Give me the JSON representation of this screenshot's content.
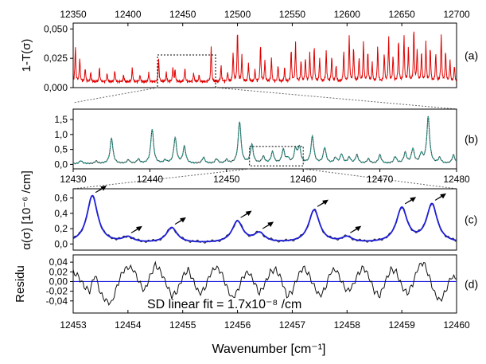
{
  "figure": {
    "xlabel": "Wavenumber [cm⁻¹]",
    "sd_note": "SD linear fit = 1.7x10⁻⁸ /cm",
    "colors": {
      "transmission": "#e00000",
      "fit": "#1e1ed8",
      "data": "#222222",
      "model_b": "#2ab0a0",
      "residual_zero": "#2020e0"
    }
  },
  "chart_data": [
    {
      "id": "a",
      "type": "line",
      "panel_label": "(a)",
      "ylabel": "1-T(σ)",
      "xlim": [
        12350,
        12700
      ],
      "ylim": [
        0,
        0.055
      ],
      "top_ticks": [
        "12350",
        "12400",
        "12450",
        "12500",
        "12550",
        "12600",
        "12650",
        "12700"
      ],
      "top_tick_values": [
        12350,
        12400,
        12450,
        12500,
        12550,
        12600,
        12650,
        12700
      ],
      "yticks": [
        "0,000",
        "0,025",
        "0,050"
      ],
      "ytick_values": [
        0,
        0.025,
        0.05
      ],
      "zoom_box_x": [
        12427,
        12480
      ],
      "series": [
        {
          "baseline": 0.003,
          "peaks": [
            [
              12352,
              0.03
            ],
            [
              12356,
              0.02
            ],
            [
              12361,
              0.012
            ],
            [
              12366,
              0.008
            ],
            [
              12374,
              0.012
            ],
            [
              12381,
              0.007
            ],
            [
              12388,
              0.01
            ],
            [
              12396,
              0.006
            ],
            [
              12404,
              0.012
            ],
            [
              12411,
              0.006
            ],
            [
              12419,
              0.008
            ],
            [
              12428,
              0.02
            ],
            [
              12435,
              0.008
            ],
            [
              12441,
              0.012
            ],
            [
              12443,
              0.01
            ],
            [
              12452,
              0.012
            ],
            [
              12460,
              0.008
            ],
            [
              12465,
              0.006
            ],
            [
              12476,
              0.03
            ],
            [
              12485,
              0.014
            ],
            [
              12491,
              0.008
            ],
            [
              12496,
              0.025
            ],
            [
              12500,
              0.045
            ],
            [
              12504,
              0.022
            ],
            [
              12510,
              0.016
            ],
            [
              12516,
              0.01
            ],
            [
              12521,
              0.032
            ],
            [
              12525,
              0.018
            ],
            [
              12531,
              0.02
            ],
            [
              12537,
              0.014
            ],
            [
              12543,
              0.012
            ],
            [
              12549,
              0.028
            ],
            [
              12553,
              0.034
            ],
            [
              12558,
              0.018
            ],
            [
              12562,
              0.02
            ],
            [
              12566,
              0.024
            ],
            [
              12570,
              0.03
            ],
            [
              12575,
              0.02
            ],
            [
              12581,
              0.026
            ],
            [
              12586,
              0.022
            ],
            [
              12590,
              0.014
            ],
            [
              12597,
              0.026
            ],
            [
              12602,
              0.04
            ],
            [
              12606,
              0.03
            ],
            [
              12611,
              0.02
            ],
            [
              12615,
              0.034
            ],
            [
              12619,
              0.026
            ],
            [
              12623,
              0.016
            ],
            [
              12628,
              0.03
            ],
            [
              12634,
              0.024
            ],
            [
              12638,
              0.038
            ],
            [
              12642,
              0.022
            ],
            [
              12647,
              0.036
            ],
            [
              12652,
              0.04
            ],
            [
              12656,
              0.03
            ],
            [
              12661,
              0.046
            ],
            [
              12664,
              0.028
            ],
            [
              12668,
              0.026
            ],
            [
              12672,
              0.034
            ],
            [
              12676,
              0.03
            ],
            [
              12681,
              0.024
            ],
            [
              12686,
              0.04
            ],
            [
              12690,
              0.026
            ],
            [
              12694,
              0.018
            ],
            [
              12698,
              0.014
            ]
          ]
        }
      ]
    },
    {
      "id": "b",
      "type": "line",
      "panel_label": "(b)",
      "xlim": [
        12430,
        12480
      ],
      "ylim": [
        -0.15,
        1.85
      ],
      "yticks": [
        "0,0",
        "0,5",
        "1,0",
        "1,5"
      ],
      "ytick_values": [
        0,
        0.5,
        1.0,
        1.5
      ],
      "zoom_box_x": [
        12453,
        12460
      ],
      "zoom_box_y": [
        -0.05,
        0.6
      ],
      "series": [
        {
          "baseline": 0.02,
          "peaks": [
            [
              12431.0,
              0.1
            ],
            [
              12433.0,
              0.08
            ],
            [
              12435.0,
              0.85
            ],
            [
              12437.2,
              0.12
            ],
            [
              12438.5,
              0.14
            ],
            [
              12440.3,
              1.15
            ],
            [
              12442.0,
              0.1
            ],
            [
              12443.3,
              0.85
            ],
            [
              12444.5,
              0.55
            ],
            [
              12447.0,
              0.2
            ],
            [
              12448.7,
              0.15
            ],
            [
              12450.0,
              0.12
            ],
            [
              12451.7,
              1.4
            ],
            [
              12453.3,
              0.62
            ],
            [
              12454.8,
              0.22
            ],
            [
              12456.0,
              0.38
            ],
            [
              12457.4,
              0.45
            ],
            [
              12458.0,
              0.15
            ],
            [
              12459.0,
              0.45
            ],
            [
              12459.5,
              0.52
            ],
            [
              12461.2,
              0.9
            ],
            [
              12462.8,
              0.52
            ],
            [
              12464.2,
              0.18
            ],
            [
              12465.0,
              0.3
            ],
            [
              12466.0,
              0.2
            ],
            [
              12467.0,
              0.28
            ],
            [
              12468.5,
              0.15
            ],
            [
              12470.0,
              0.28
            ],
            [
              12472.0,
              0.22
            ],
            [
              12473.3,
              0.35
            ],
            [
              12474.3,
              0.48
            ],
            [
              12475.4,
              0.3
            ],
            [
              12476.3,
              1.55
            ],
            [
              12477.8,
              0.18
            ],
            [
              12479.6,
              0.28
            ]
          ]
        }
      ]
    },
    {
      "id": "c",
      "type": "line",
      "panel_label": "(c)",
      "ylabel": "α(σ) [10⁻⁶ /cm]",
      "xlim": [
        12453,
        12460
      ],
      "ylim": [
        -0.08,
        0.72
      ],
      "top_ticks": [
        "12430",
        "12440",
        "12450",
        "12460",
        "12470",
        "12480"
      ],
      "top_tick_values": [
        12430,
        12440,
        12450,
        12460,
        12470,
        12480
      ],
      "yticks": [
        "0,0",
        "0,2",
        "0,4",
        "0,6"
      ],
      "ytick_values": [
        0,
        0.2,
        0.4,
        0.6
      ],
      "arrow_markers_x": [
        12453.35,
        12454.0,
        12454.8,
        12456.0,
        12456.4,
        12457.4,
        12458.0,
        12459.0,
        12459.55
      ],
      "series": [
        {
          "baseline": 0.005,
          "peaks": [
            [
              12453.35,
              0.62
            ],
            [
              12454.0,
              0.07
            ],
            [
              12454.8,
              0.2
            ],
            [
              12456.0,
              0.28
            ],
            [
              12456.4,
              0.12
            ],
            [
              12457.4,
              0.43
            ],
            [
              12458.0,
              0.07
            ],
            [
              12459.0,
              0.45
            ],
            [
              12459.55,
              0.5
            ]
          ]
        }
      ]
    },
    {
      "id": "d",
      "type": "line",
      "panel_label": "(d)",
      "ylabel": "Residu",
      "xlim": [
        12453,
        12460
      ],
      "ylim": [
        -0.065,
        0.055
      ],
      "bottom_ticks": [
        "12453",
        "12454",
        "12455",
        "12456",
        "12457",
        "12458",
        "12459",
        "12460"
      ],
      "bottom_tick_values": [
        12453,
        12454,
        12455,
        12456,
        12457,
        12458,
        12459,
        12460
      ],
      "yticks": [
        "-0,04",
        "-0,02",
        "0,00",
        "0,02",
        "0,04"
      ],
      "ytick_values": [
        -0.04,
        -0.02,
        0,
        0.02,
        0.04
      ],
      "series": [
        {
          "x": [
            12453.0,
            12453.1,
            12453.2,
            12453.3,
            12453.4,
            12453.5,
            12453.6,
            12453.7,
            12453.8,
            12453.9,
            12454.0,
            12454.1,
            12454.2,
            12454.3,
            12454.4,
            12454.5,
            12454.6,
            12454.7,
            12454.8,
            12454.9,
            12455.0,
            12455.1,
            12455.2,
            12455.3,
            12455.4,
            12455.5,
            12455.6,
            12455.7,
            12455.8,
            12455.9,
            12456.0,
            12456.1,
            12456.2,
            12456.3,
            12456.4,
            12456.5,
            12456.6,
            12456.7,
            12456.8,
            12456.9,
            12457.0,
            12457.1,
            12457.2,
            12457.3,
            12457.4,
            12457.5,
            12457.6,
            12457.7,
            12457.8,
            12457.9,
            12458.0,
            12458.1,
            12458.2,
            12458.3,
            12458.4,
            12458.5,
            12458.6,
            12458.7,
            12458.8,
            12458.9,
            12459.0,
            12459.1,
            12459.2,
            12459.3,
            12459.4,
            12459.5,
            12459.6,
            12459.7,
            12459.8,
            12459.9,
            12460.0
          ],
          "y": [
            0.02,
            0.01,
            -0.01,
            -0.02,
            0.015,
            -0.025,
            -0.04,
            -0.045,
            -0.01,
            0.02,
            0.03,
            0.025,
            0.0,
            -0.02,
            0.01,
            0.035,
            0.02,
            -0.005,
            -0.03,
            -0.02,
            0.01,
            0.025,
            0.0,
            -0.025,
            -0.015,
            0.015,
            0.03,
            0.02,
            -0.01,
            -0.035,
            -0.02,
            0.01,
            0.02,
            0.0,
            -0.025,
            -0.005,
            0.02,
            0.025,
            0.005,
            -0.03,
            -0.02,
            0.01,
            0.03,
            0.015,
            -0.01,
            -0.03,
            -0.015,
            0.02,
            0.025,
            0.0,
            -0.02,
            -0.01,
            0.015,
            0.03,
            0.01,
            -0.02,
            -0.03,
            0.0,
            0.025,
            0.02,
            -0.01,
            -0.025,
            -0.005,
            0.03,
            0.04,
            0.01,
            -0.025,
            -0.04,
            -0.02,
            0.01,
            0.005
          ]
        }
      ]
    }
  ]
}
